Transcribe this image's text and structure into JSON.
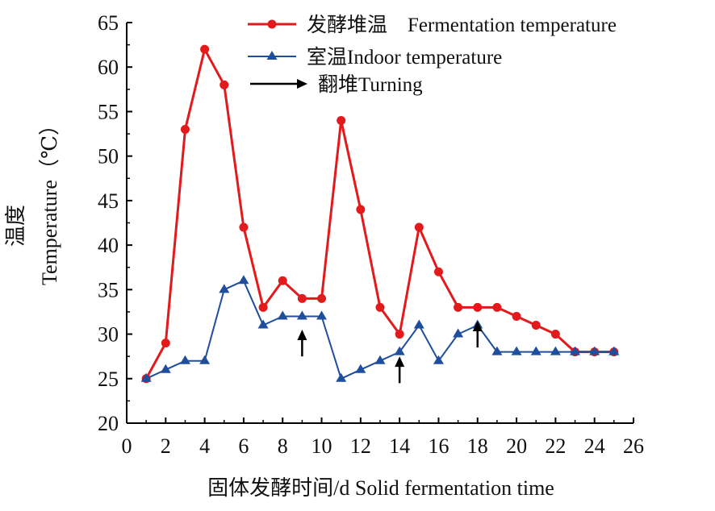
{
  "chart_data": {
    "type": "line",
    "xlabel": "固体发酵时间/d Solid fermentation time",
    "ylabel_lines": [
      "温度",
      "Temperature（℃）"
    ],
    "xlim": [
      0,
      26
    ],
    "ylim": [
      20,
      65
    ],
    "xticks": [
      0,
      2,
      4,
      6,
      8,
      10,
      12,
      14,
      16,
      18,
      20,
      22,
      24,
      26
    ],
    "yticks": [
      20,
      25,
      30,
      35,
      40,
      45,
      50,
      55,
      60,
      65
    ],
    "grid": false,
    "legend_position": "top-right",
    "series": [
      {
        "name": "发酵堆温　Fermentation temperature",
        "color": "#e31a1c",
        "marker": "circle",
        "x": [
          1,
          2,
          3,
          4,
          5,
          6,
          7,
          8,
          9,
          10,
          11,
          12,
          13,
          14,
          15,
          16,
          17,
          18,
          19,
          20,
          21,
          22,
          23,
          24,
          25
        ],
        "y": [
          25,
          29,
          53,
          62,
          58,
          42,
          33,
          36,
          34,
          34,
          54,
          44,
          33,
          30,
          42,
          37,
          33,
          33,
          33,
          32,
          31,
          30,
          28,
          28,
          28
        ]
      },
      {
        "name": "室温Indoor temperature",
        "color": "#1f4e9c",
        "marker": "triangle",
        "x": [
          1,
          2,
          3,
          4,
          5,
          6,
          7,
          8,
          9,
          10,
          11,
          12,
          13,
          14,
          15,
          16,
          17,
          18,
          19,
          20,
          21,
          22,
          23,
          24,
          25
        ],
        "y": [
          25,
          26,
          27,
          27,
          35,
          36,
          31,
          32,
          32,
          32,
          25,
          26,
          27,
          28,
          31,
          27,
          30,
          31,
          28,
          28,
          28,
          28,
          28,
          28,
          28
        ]
      }
    ],
    "annotations": {
      "name": "翻堆Turning",
      "color": "#000000",
      "marker": "arrow-up",
      "arrows": [
        {
          "x": 9,
          "y_from": 27.5,
          "y_to": 30.5
        },
        {
          "x": 14,
          "y_from": 24.5,
          "y_to": 27.5
        },
        {
          "x": 18,
          "y_from": 28.5,
          "y_to": 31.5
        }
      ]
    }
  }
}
